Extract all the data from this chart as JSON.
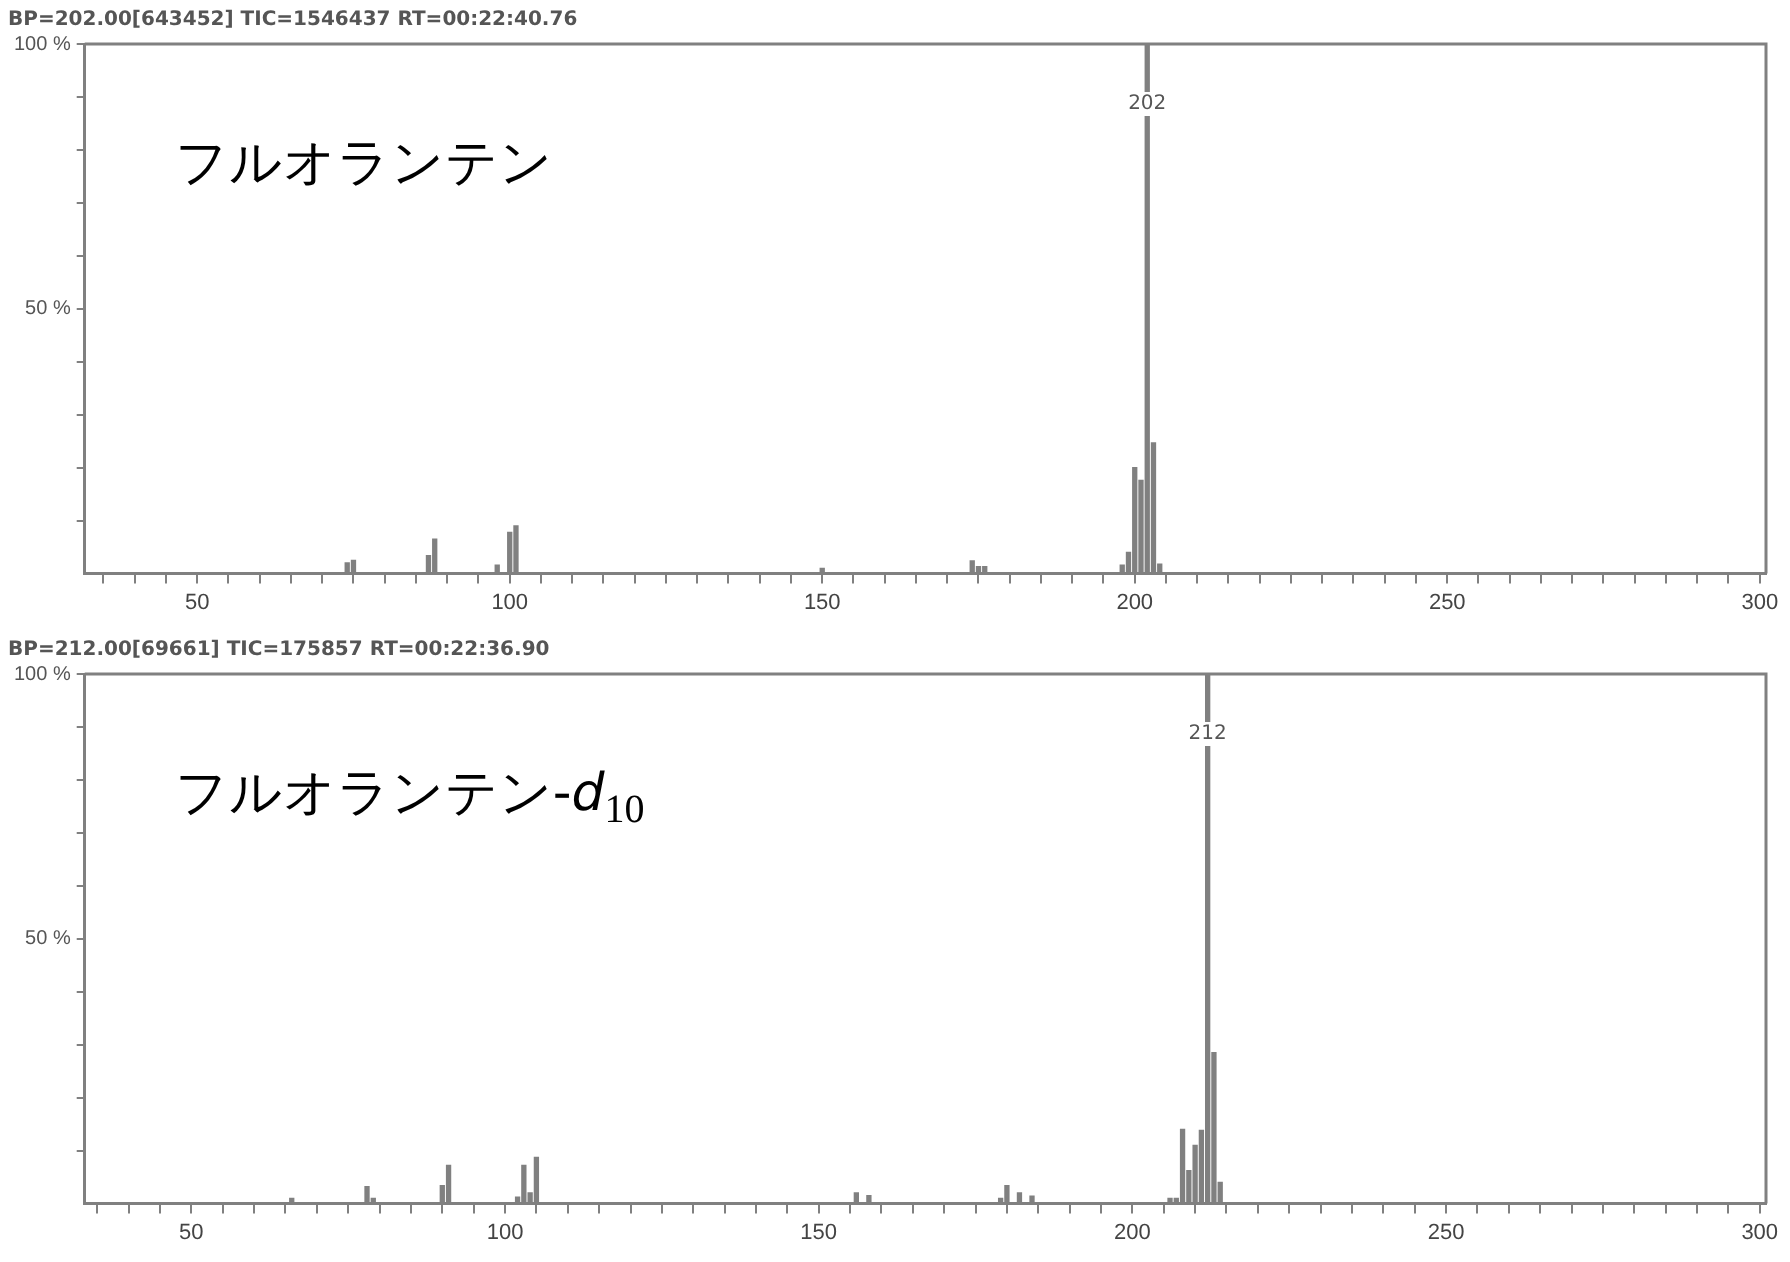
{
  "chart_data": [
    {
      "type": "bar",
      "title": "BP=202.00[643452] TIC=1546437 RT=00:22:40.76",
      "x": [
        74,
        75,
        87,
        88,
        98,
        100,
        101,
        150,
        174,
        175,
        176,
        198,
        199,
        200,
        201,
        202,
        203,
        204
      ],
      "values": [
        2,
        2.5,
        3.4,
        6.5,
        1.6,
        7.8,
        9,
        1,
        2.4,
        1.3,
        1.3,
        1.6,
        4,
        20,
        17.6,
        100,
        24.7,
        1.8
      ],
      "color": "#808080",
      "xlim": [
        32,
        301
      ],
      "ylim": [
        0,
        100
      ],
      "xticks": [
        {
          "value": 35,
          "label": null
        },
        {
          "value": 40,
          "label": null
        },
        {
          "value": 45,
          "label": null
        },
        50,
        {
          "value": 55,
          "label": null
        },
        {
          "value": 60,
          "label": null
        },
        {
          "value": 65,
          "label": null
        },
        {
          "value": 70,
          "label": null
        },
        {
          "value": 75,
          "label": null
        },
        {
          "value": 80,
          "label": null
        },
        {
          "value": 85,
          "label": null
        },
        {
          "value": 90,
          "label": null
        },
        {
          "value": 95,
          "label": null
        },
        100,
        {
          "value": 105,
          "label": null
        },
        {
          "value": 110,
          "label": null
        },
        {
          "value": 115,
          "label": null
        },
        {
          "value": 120,
          "label": null
        },
        {
          "value": 125,
          "label": null
        },
        {
          "value": 130,
          "label": null
        },
        {
          "value": 135,
          "label": null
        },
        {
          "value": 140,
          "label": null
        },
        {
          "value": 145,
          "label": null
        },
        150,
        {
          "value": 155,
          "label": null
        },
        {
          "value": 160,
          "label": null
        },
        {
          "value": 165,
          "label": null
        },
        {
          "value": 170,
          "label": null
        },
        {
          "value": 175,
          "label": null
        },
        {
          "value": 180,
          "label": null
        },
        {
          "value": 185,
          "label": null
        },
        {
          "value": 190,
          "label": null
        },
        {
          "value": 195,
          "label": null
        },
        200,
        {
          "value": 205,
          "label": null
        },
        {
          "value": 210,
          "label": null
        },
        {
          "value": 215,
          "label": null
        },
        {
          "value": 220,
          "label": null
        },
        {
          "value": 225,
          "label": null
        },
        {
          "value": 230,
          "label": null
        },
        {
          "value": 235,
          "label": null
        },
        {
          "value": 240,
          "label": null
        },
        {
          "value": 245,
          "label": null
        },
        250,
        {
          "value": 255,
          "label": null
        },
        {
          "value": 260,
          "label": null
        },
        {
          "value": 265,
          "label": null
        },
        {
          "value": 270,
          "label": null
        },
        {
          "value": 275,
          "label": null
        },
        {
          "value": 280,
          "label": null
        },
        {
          "value": 285,
          "label": null
        },
        {
          "value": 290,
          "label": null
        },
        {
          "value": 295,
          "label": null
        },
        300
      ],
      "yticks": [
        {
          "value": 10,
          "label": null
        },
        {
          "value": 20,
          "label": null
        },
        {
          "value": 30,
          "label": null
        },
        {
          "value": 40,
          "label": null
        },
        {
          "value": 50,
          "label": "50 %"
        },
        {
          "value": 60,
          "label": null
        },
        {
          "value": 70,
          "label": null
        },
        {
          "value": 80,
          "label": null
        },
        {
          "value": 90,
          "label": null
        },
        {
          "value": 100,
          "label": "100 %"
        }
      ],
      "annotations": [
        "フルオランテン",
        {
          "text": "202",
          "x": 202,
          "y": 100
        }
      ],
      "grid": false,
      "legend": false
    },
    {
      "type": "bar",
      "title": "BP=212.00[69661] TIC=175857 RT=00:22:36.90",
      "x": [
        66,
        78,
        79,
        90,
        91,
        102,
        103,
        104,
        105,
        156,
        158,
        179,
        180,
        182,
        184,
        206,
        207,
        208,
        209,
        210,
        211,
        212,
        213,
        214
      ],
      "values": [
        1,
        3.2,
        1,
        3.4,
        7.2,
        1.2,
        7.2,
        2,
        8.7,
        2,
        1.5,
        1,
        3.4,
        2,
        1.4,
        1,
        1,
        14,
        6.2,
        11,
        13.8,
        100,
        28.5,
        4
      ],
      "color": "#808080",
      "xlim": [
        33,
        301
      ],
      "ylim": [
        0,
        100
      ],
      "xticks": [
        {
          "value": 35,
          "label": null
        },
        {
          "value": 40,
          "label": null
        },
        {
          "value": 45,
          "label": null
        },
        50,
        {
          "value": 55,
          "label": null
        },
        {
          "value": 60,
          "label": null
        },
        {
          "value": 65,
          "label": null
        },
        {
          "value": 70,
          "label": null
        },
        {
          "value": 75,
          "label": null
        },
        {
          "value": 80,
          "label": null
        },
        {
          "value": 85,
          "label": null
        },
        {
          "value": 90,
          "label": null
        },
        {
          "value": 95,
          "label": null
        },
        100,
        {
          "value": 105,
          "label": null
        },
        {
          "value": 110,
          "label": null
        },
        {
          "value": 115,
          "label": null
        },
        {
          "value": 120,
          "label": null
        },
        {
          "value": 125,
          "label": null
        },
        {
          "value": 130,
          "label": null
        },
        {
          "value": 135,
          "label": null
        },
        {
          "value": 140,
          "label": null
        },
        {
          "value": 145,
          "label": null
        },
        150,
        {
          "value": 155,
          "label": null
        },
        {
          "value": 160,
          "label": null
        },
        {
          "value": 165,
          "label": null
        },
        {
          "value": 170,
          "label": null
        },
        {
          "value": 175,
          "label": null
        },
        {
          "value": 180,
          "label": null
        },
        {
          "value": 185,
          "label": null
        },
        {
          "value": 190,
          "label": null
        },
        {
          "value": 195,
          "label": null
        },
        200,
        {
          "value": 205,
          "label": null
        },
        {
          "value": 210,
          "label": null
        },
        {
          "value": 215,
          "label": null
        },
        {
          "value": 220,
          "label": null
        },
        {
          "value": 225,
          "label": null
        },
        {
          "value": 230,
          "label": null
        },
        {
          "value": 235,
          "label": null
        },
        {
          "value": 240,
          "label": null
        },
        {
          "value": 245,
          "label": null
        },
        250,
        {
          "value": 255,
          "label": null
        },
        {
          "value": 260,
          "label": null
        },
        {
          "value": 265,
          "label": null
        },
        {
          "value": 270,
          "label": null
        },
        {
          "value": 275,
          "label": null
        },
        {
          "value": 280,
          "label": null
        },
        {
          "value": 285,
          "label": null
        },
        {
          "value": 290,
          "label": null
        },
        {
          "value": 295,
          "label": null
        },
        300
      ],
      "yticks": [
        {
          "value": 10,
          "label": null
        },
        {
          "value": 20,
          "label": null
        },
        {
          "value": 30,
          "label": null
        },
        {
          "value": 40,
          "label": null
        },
        {
          "value": 50,
          "label": "50 %"
        },
        {
          "value": 60,
          "label": null
        },
        {
          "value": 70,
          "label": null
        },
        {
          "value": 80,
          "label": null
        },
        {
          "value": 90,
          "label": null
        },
        {
          "value": 100,
          "label": "100 %"
        }
      ],
      "annotations": [
        "フルオランテン-d$_{10}$",
        {
          "text": "212",
          "x": 212,
          "y": 100
        }
      ],
      "grid": false,
      "legend": false
    }
  ]
}
